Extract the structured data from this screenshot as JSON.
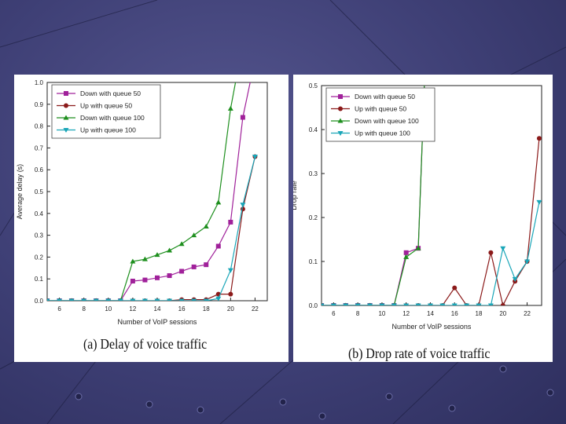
{
  "colors": {
    "background": "#3e3f75",
    "series": [
      "#a0219a",
      "#8b1a1a",
      "#1e8f1e",
      "#1aa6b8"
    ]
  },
  "chart_data": [
    {
      "type": "line",
      "caption": "(a) Delay of voice traffic",
      "xlabel": "Number of VoIP sessions",
      "ylabel": "Average delay (s)",
      "xlim": [
        5,
        23
      ],
      "ylim": [
        0,
        1.0
      ],
      "x_ticks": [
        "6",
        "8",
        "10",
        "12",
        "14",
        "16",
        "18",
        "20",
        "22"
      ],
      "y_ticks": [
        "0.0",
        "0.1",
        "0.2",
        "0.3",
        "0.4",
        "0.5",
        "0.6",
        "0.7",
        "0.8",
        "0.9",
        "1.0"
      ],
      "legend_position": "top-left",
      "series": [
        {
          "name": "Down with queue 50",
          "marker": "square",
          "x": [
            5,
            6,
            7,
            8,
            9,
            10,
            11,
            12,
            13,
            14,
            15,
            16,
            17,
            18,
            19,
            20,
            21,
            21.6
          ],
          "y": [
            0,
            0,
            0,
            0,
            0,
            0,
            0,
            0.09,
            0.095,
            0.105,
            0.115,
            0.135,
            0.155,
            0.165,
            0.25,
            0.36,
            0.84,
            1.0
          ]
        },
        {
          "name": "Up with queue 50",
          "marker": "circle",
          "x": [
            5,
            6,
            7,
            8,
            9,
            10,
            11,
            12,
            13,
            14,
            15,
            16,
            17,
            18,
            19,
            20,
            21,
            22
          ],
          "y": [
            0,
            0,
            0,
            0,
            0,
            0,
            0,
            0,
            0,
            0,
            0,
            0.005,
            0.005,
            0.005,
            0.03,
            0.03,
            0.42,
            0.66
          ]
        },
        {
          "name": "Down with queue 100",
          "marker": "triangle-up",
          "x": [
            5,
            6,
            7,
            8,
            9,
            10,
            11,
            12,
            13,
            14,
            15,
            16,
            17,
            18,
            19,
            20,
            20.4
          ],
          "y": [
            0,
            0,
            0,
            0,
            0,
            0,
            0,
            0.18,
            0.19,
            0.21,
            0.23,
            0.26,
            0.3,
            0.34,
            0.45,
            0.88,
            1.0
          ]
        },
        {
          "name": "Up with queue 100",
          "marker": "triangle-down",
          "x": [
            5,
            6,
            7,
            8,
            9,
            10,
            11,
            12,
            13,
            14,
            15,
            16,
            17,
            18,
            19,
            20,
            21,
            22
          ],
          "y": [
            0,
            0,
            0,
            0,
            0,
            0,
            0,
            0,
            0,
            0,
            0,
            0,
            0,
            0,
            0.01,
            0.14,
            0.44,
            0.66
          ]
        }
      ]
    },
    {
      "type": "line",
      "caption": "(b) Drop rate of voice traffic",
      "xlabel": "Number of VoIP sessions",
      "ylabel": "Drop rate",
      "xlim": [
        5,
        23.2
      ],
      "ylim": [
        0,
        0.5
      ],
      "x_ticks": [
        "6",
        "8",
        "10",
        "12",
        "14",
        "16",
        "18",
        "20",
        "22"
      ],
      "y_ticks": [
        "0.0",
        "0.1",
        "0.2",
        "0.3",
        "0.4",
        "0.5"
      ],
      "legend_position": "top-left",
      "series": [
        {
          "name": "Down with queue 50",
          "marker": "square",
          "x": [
            5,
            6,
            7,
            8,
            9,
            10,
            11,
            12,
            13,
            13.5
          ],
          "y": [
            0,
            0,
            0,
            0,
            0,
            0,
            0,
            0.12,
            0.13,
            0.5
          ]
        },
        {
          "name": "Up with queue 50",
          "marker": "circle",
          "x": [
            5,
            6,
            7,
            8,
            9,
            10,
            11,
            12,
            13,
            14,
            15,
            16,
            17,
            18,
            19,
            20,
            21,
            22,
            23
          ],
          "y": [
            0,
            0,
            0,
            0,
            0,
            0,
            0,
            0,
            0,
            0,
            0,
            0.04,
            0,
            0,
            0.12,
            0,
            0.055,
            0.1,
            0.38
          ]
        },
        {
          "name": "Down with queue 100",
          "marker": "triangle-up",
          "x": [
            5,
            6,
            7,
            8,
            9,
            10,
            11,
            12,
            13,
            13.5
          ],
          "y": [
            0,
            0,
            0,
            0,
            0,
            0,
            0,
            0.11,
            0.13,
            0.5
          ]
        },
        {
          "name": "Up with queue 100",
          "marker": "triangle-down",
          "x": [
            5,
            6,
            7,
            8,
            9,
            10,
            11,
            12,
            13,
            14,
            15,
            16,
            17,
            18,
            19,
            20,
            21,
            22,
            23
          ],
          "y": [
            0,
            0,
            0,
            0,
            0,
            0,
            0,
            0,
            0,
            0,
            0,
            0,
            0,
            0,
            0,
            0.13,
            0.06,
            0.1,
            0.235
          ]
        }
      ]
    }
  ]
}
